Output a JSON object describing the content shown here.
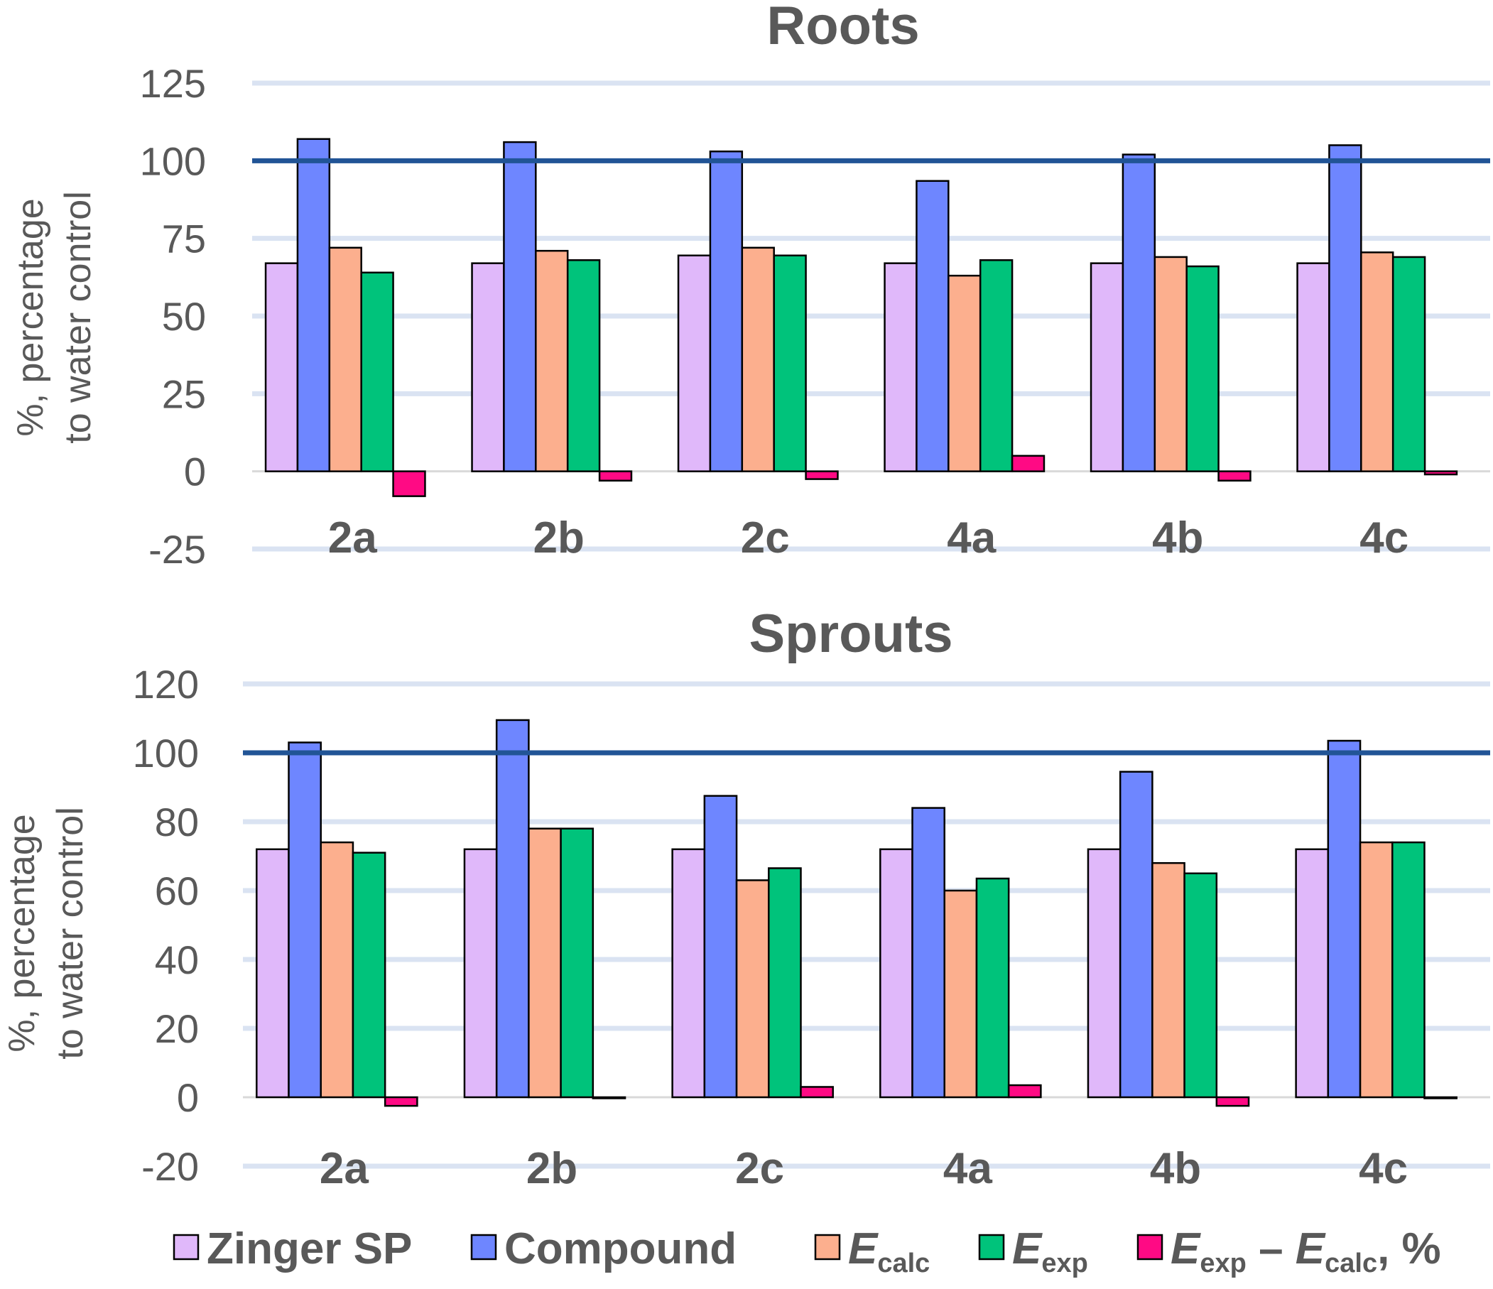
{
  "chart_data": [
    {
      "type": "bar",
      "title": "Roots",
      "ylabel": [
        "%, percentage",
        "to water control"
      ],
      "categories": [
        "2a",
        "2b",
        "2c",
        "4a",
        "4b",
        "4c"
      ],
      "ylim": [
        -25,
        125
      ],
      "yticks": [
        125,
        100,
        75,
        50,
        25,
        0,
        -25
      ],
      "ytick_labels": [
        "125",
        "100",
        "75",
        "50",
        "25",
        "0",
        "-25"
      ],
      "reference_line": 100,
      "grid": true,
      "series": [
        {
          "name": "Zinger SP",
          "color": "#e0b8fa",
          "values": [
            67,
            67,
            69.5,
            67,
            67,
            67
          ]
        },
        {
          "name": "Compound",
          "color": "#6e86ff",
          "values": [
            107,
            106,
            103,
            93.5,
            102,
            105
          ]
        },
        {
          "name": "Ecalc",
          "color": "#fcaf8e",
          "values": [
            72,
            71,
            72,
            63,
            69,
            70.5
          ]
        },
        {
          "name": "Eexp",
          "color": "#00c37b",
          "values": [
            64,
            68,
            69.5,
            68,
            66,
            69
          ]
        },
        {
          "name": "Eexp – Ecalc, %",
          "color": "#ff0a84",
          "values": [
            -8,
            -3,
            -2.5,
            5,
            -3,
            -1
          ]
        }
      ]
    },
    {
      "type": "bar",
      "title": "Sprouts",
      "ylabel": [
        "%, percentage",
        "to water control"
      ],
      "categories": [
        "2a",
        "2b",
        "2c",
        "4a",
        "4b",
        "4c"
      ],
      "ylim": [
        -20,
        120
      ],
      "yticks": [
        120,
        100,
        80,
        60,
        40,
        20,
        0,
        -20
      ],
      "ytick_labels": [
        "120",
        "100",
        "80",
        "60",
        "40",
        "20",
        "0",
        "-20"
      ],
      "reference_line": 100,
      "grid": true,
      "series": [
        {
          "name": "Zinger SP",
          "color": "#e0b8fa",
          "values": [
            72,
            72,
            72,
            72,
            72,
            72
          ]
        },
        {
          "name": "Compound",
          "color": "#6e86ff",
          "values": [
            103,
            109.5,
            87.5,
            84,
            94.5,
            103.5
          ]
        },
        {
          "name": "Ecalc",
          "color": "#fcaf8e",
          "values": [
            74,
            78,
            63,
            60,
            68,
            74
          ]
        },
        {
          "name": "Eexp",
          "color": "#00c37b",
          "values": [
            71,
            78,
            66.5,
            63.5,
            65,
            74
          ]
        },
        {
          "name": "Eexp – Ecalc, %",
          "color": "#ff0a84",
          "values": [
            -2.5,
            -0.3,
            3,
            3.5,
            -2.5,
            -0.3
          ]
        }
      ]
    }
  ],
  "legend": {
    "position": "bottom",
    "items": [
      {
        "main": "Zinger SP",
        "sub": "",
        "suffix": "",
        "italic": false,
        "color": "#e0b8fa"
      },
      {
        "main": "Compound",
        "sub": "",
        "suffix": "",
        "italic": false,
        "color": "#6e86ff"
      },
      {
        "main": "E",
        "sub": "calc",
        "suffix": "",
        "italic": true,
        "color": "#fcaf8e"
      },
      {
        "main": "E",
        "sub": "exp",
        "suffix": "",
        "italic": true,
        "color": "#00c37b"
      },
      {
        "main": "E",
        "sub": "exp",
        "suffix": " – ",
        "main2": "E",
        "sub2": "calc",
        "suffix2": ", %",
        "italic": true,
        "color": "#ff0a84"
      }
    ]
  },
  "colors": {
    "grid": "#dae3f2",
    "reference_line": "#215496",
    "zero_line": "#d9d9d9",
    "text": "#595959",
    "bar_outline": "#000000"
  }
}
